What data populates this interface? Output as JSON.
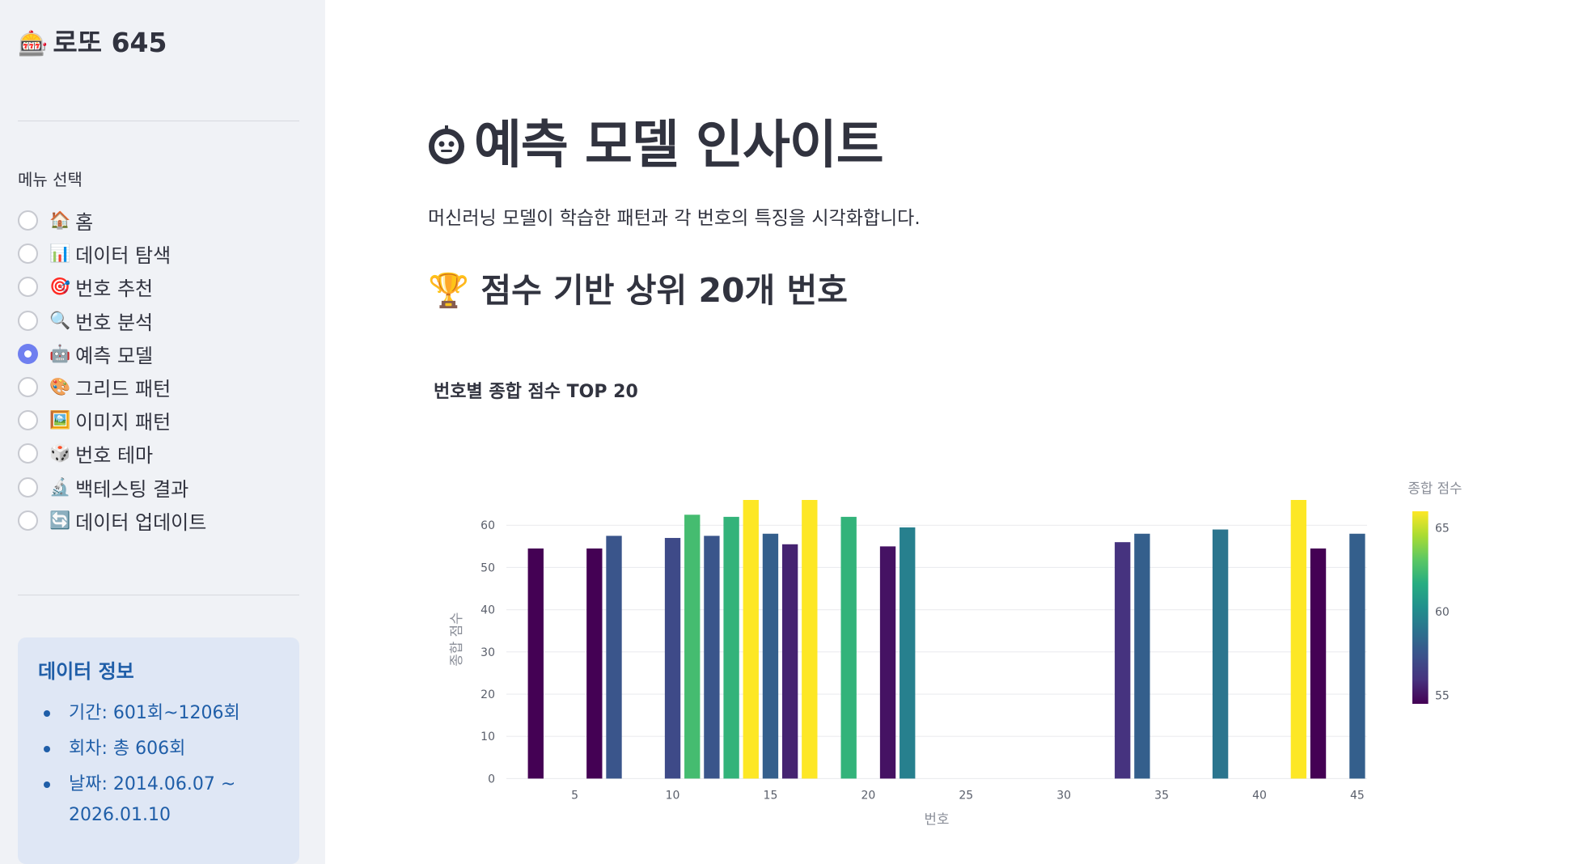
{
  "sidebar": {
    "app_icon": "slot-machine-icon",
    "app_title": "로또 645",
    "menu_label": "메뉴 선택",
    "items": [
      {
        "icon": "🏠",
        "label": "홈",
        "selected": false
      },
      {
        "icon": "📊",
        "label": "데이터 탐색",
        "selected": false
      },
      {
        "icon": "🎯",
        "label": "번호 추천",
        "selected": false
      },
      {
        "icon": "🔍",
        "label": "번호 분석",
        "selected": false
      },
      {
        "icon": "🤖",
        "label": "예측 모델",
        "selected": true
      },
      {
        "icon": "🎨",
        "label": "그리드 패턴",
        "selected": false
      },
      {
        "icon": "🖼️",
        "label": "이미지 패턴",
        "selected": false
      },
      {
        "icon": "🎲",
        "label": "번호 테마",
        "selected": false
      },
      {
        "icon": "🔬",
        "label": "백테스팅 결과",
        "selected": false
      },
      {
        "icon": "🔄",
        "label": "데이터 업데이트",
        "selected": false
      }
    ],
    "info": {
      "title": "데이터 정보",
      "items": [
        "기간: 601회~1206회",
        "회차: 총 606회",
        "날짜: 2014.06.07 ~ 2026.01.10"
      ]
    }
  },
  "main": {
    "title_icon": "robot-icon",
    "title": "예측 모델 인사이트",
    "subtitle": "머신러닝 모델이 학습한 패턴과 각 번호의 특징을 시각화합니다.",
    "section_icon": "🏆",
    "section_title": "점수 기반 상위 20개 번호",
    "chart_title": "번호별 종합 점수 TOP 20"
  },
  "colors": {
    "accent": "#6f7ff0",
    "sidebar_bg": "#f0f2f6",
    "info_bg": "#dfe7f5",
    "info_text": "#1f5ea8"
  },
  "chart_data": {
    "type": "bar",
    "title": "번호별 종합 점수 TOP 20",
    "xlabel": "번호",
    "ylabel": "종합 점수",
    "colorbar_title": "종합 점수",
    "colorscale": "viridis",
    "colorbar_ticks": [
      55,
      60,
      65
    ],
    "color_range": [
      54.5,
      66
    ],
    "xlim": [
      1.5,
      45.5
    ],
    "ylim": [
      0,
      66
    ],
    "x_ticks": [
      5,
      10,
      15,
      20,
      25,
      30,
      35,
      40,
      45
    ],
    "y_ticks": [
      0,
      10,
      20,
      30,
      40,
      50,
      60
    ],
    "grid": true,
    "x": [
      3,
      6,
      7,
      10,
      11,
      12,
      13,
      14,
      15,
      16,
      17,
      19,
      21,
      22,
      33,
      34,
      38,
      42,
      43,
      45
    ],
    "values": [
      54.5,
      54.5,
      57.5,
      57,
      62.5,
      57.5,
      62,
      66,
      58,
      55.5,
      66,
      62,
      55,
      59.5,
      56,
      58,
      59,
      66,
      54.5,
      58
    ]
  }
}
